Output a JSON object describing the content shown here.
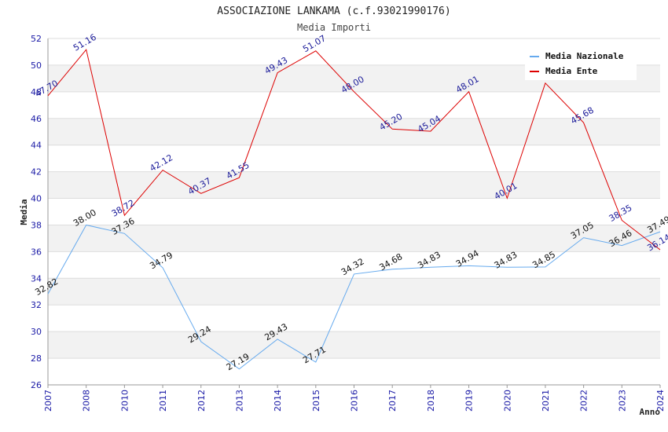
{
  "chart_data": {
    "type": "line",
    "title": "ASSOCIAZIONE LANKAMA (c.f.93021990176)",
    "subtitle": "Media Importi",
    "xlabel": "Anno",
    "ylabel": "Media",
    "categories": [
      "2007",
      "2008",
      "2010",
      "2011",
      "2012",
      "2013",
      "2014",
      "2015",
      "2016",
      "2017",
      "2018",
      "2019",
      "2020",
      "2021",
      "2022",
      "2023",
      "2024"
    ],
    "ylim": [
      26,
      52
    ],
    "yticks": [
      26,
      28,
      30,
      32,
      34,
      36,
      38,
      40,
      42,
      44,
      46,
      48,
      50,
      52
    ],
    "grid": "horizontal-bands",
    "legend_position": "top-right",
    "series": [
      {
        "name": "Media Nazionale",
        "color": "#66aaee",
        "values": [
          32.82,
          38.0,
          37.36,
          34.79,
          29.24,
          27.19,
          29.43,
          27.71,
          34.32,
          34.68,
          34.83,
          34.94,
          34.83,
          34.85,
          37.05,
          36.46,
          37.49
        ],
        "labels": [
          "32.82",
          "38.00",
          "37.36",
          "34.79",
          "29.24",
          "27.19",
          "29.43",
          "27.71",
          "34.32",
          "34.68",
          "34.83",
          "34.94",
          "34.83",
          "34.85",
          "37.05",
          "36.46",
          "37.49"
        ]
      },
      {
        "name": "Media Ente",
        "color": "#dd0000",
        "values": [
          47.7,
          51.16,
          38.72,
          42.12,
          40.37,
          41.55,
          49.43,
          51.07,
          48.0,
          45.2,
          45.04,
          48.01,
          40.01,
          48.65,
          45.68,
          38.35,
          36.14
        ],
        "labels": [
          "47.70",
          "51.16",
          "38.72",
          "42.12",
          "40.37",
          "41.55",
          "49.43",
          "51.07",
          "48.00",
          "45.20",
          "45.04",
          "48.01",
          "40.01",
          "",
          "45.68",
          "38.35",
          "36.14"
        ]
      }
    ]
  }
}
